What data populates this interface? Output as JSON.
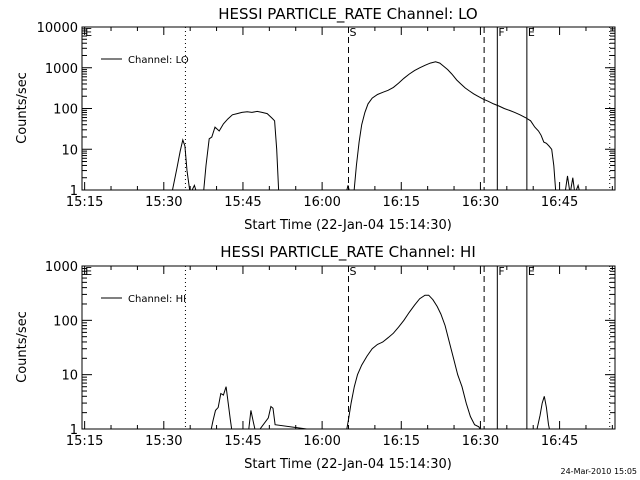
{
  "chart_data": [
    {
      "type": "line",
      "title": "HESSI PARTICLE_RATE Channel: LO",
      "xlabel": "Start Time (22-Jan-04 15:14:30)",
      "ylabel": "Counts/sec",
      "y_scale": "log",
      "ylim": [
        1,
        10000
      ],
      "y_ticks": [
        "1",
        "10",
        "100",
        "1000",
        "10000"
      ],
      "x_ticks": [
        "15:15",
        "15:30",
        "15:45",
        "16:00",
        "16:15",
        "16:30",
        "16:45"
      ],
      "xlim_minutes_from_1514_30": [
        0,
        101
      ],
      "legend": "Channel: LO",
      "legend_placement": "top-left",
      "series": [
        {
          "label": "Channel: LO",
          "points": [
            [
              17.0,
              0.8
            ],
            [
              18.0,
              3.5
            ],
            [
              18.6,
              9
            ],
            [
              19.1,
              17
            ],
            [
              19.5,
              12
            ],
            [
              19.9,
              3
            ],
            [
              20.5,
              0.8
            ],
            [
              21.3,
              1.3
            ],
            [
              21.8,
              0.8
            ],
            [
              23.0,
              0.8
            ],
            [
              23.5,
              4
            ],
            [
              24.1,
              18
            ],
            [
              24.6,
              20
            ],
            [
              25.2,
              35
            ],
            [
              26.0,
              28
            ],
            [
              26.8,
              42
            ],
            [
              27.6,
              55
            ],
            [
              28.5,
              70
            ],
            [
              29.4,
              75
            ],
            [
              30.3,
              80
            ],
            [
              31.3,
              83
            ],
            [
              32.2,
              80
            ],
            [
              33.2,
              85
            ],
            [
              34.1,
              80
            ],
            [
              35.1,
              75
            ],
            [
              36.0,
              58
            ],
            [
              36.5,
              50
            ],
            [
              36.9,
              10
            ],
            [
              37.3,
              0.8
            ],
            [
              50.0,
              0.8
            ],
            [
              50.4,
              1.3
            ],
            [
              50.8,
              0.8
            ],
            [
              51.5,
              0.8
            ],
            [
              52.0,
              4
            ],
            [
              52.5,
              15
            ],
            [
              53.0,
              40
            ],
            [
              53.6,
              80
            ],
            [
              54.2,
              130
            ],
            [
              55.0,
              180
            ],
            [
              56.0,
              220
            ],
            [
              57.0,
              250
            ],
            [
              58.0,
              280
            ],
            [
              59.0,
              330
            ],
            [
              60.0,
              420
            ],
            [
              61.0,
              550
            ],
            [
              62.0,
              700
            ],
            [
              63.0,
              850
            ],
            [
              64.0,
              1000
            ],
            [
              65.0,
              1150
            ],
            [
              66.0,
              1300
            ],
            [
              67.0,
              1400
            ],
            [
              67.8,
              1300
            ],
            [
              68.5,
              1100
            ],
            [
              69.3,
              900
            ],
            [
              70.1,
              700
            ],
            [
              71.0,
              500
            ],
            [
              71.8,
              400
            ],
            [
              72.6,
              320
            ],
            [
              73.4,
              270
            ],
            [
              74.2,
              230
            ],
            [
              75.0,
              200
            ],
            [
              76.0,
              170
            ],
            [
              77.0,
              150
            ],
            [
              78.0,
              130
            ],
            [
              79.0,
              115
            ],
            [
              80.0,
              100
            ],
            [
              81.0,
              90
            ],
            [
              82.0,
              80
            ],
            [
              83.0,
              70
            ],
            [
              84.0,
              60
            ],
            [
              85.0,
              50
            ],
            [
              85.8,
              35
            ],
            [
              86.5,
              28
            ],
            [
              87.0,
              22
            ],
            [
              87.5,
              15
            ],
            [
              88.0,
              14
            ],
            [
              88.5,
              12
            ],
            [
              89.0,
              10
            ],
            [
              89.4,
              4
            ],
            [
              89.8,
              0.8
            ],
            [
              91.5,
              0.8
            ],
            [
              92.0,
              2.2
            ],
            [
              92.5,
              0.8
            ],
            [
              93.0,
              2.0
            ],
            [
              93.4,
              0.8
            ],
            [
              94.0,
              1.3
            ],
            [
              94.4,
              0.8
            ]
          ]
        }
      ],
      "vlines": [
        {
          "x": 19.6,
          "style": "dotted",
          "label": ""
        },
        {
          "x": 50.5,
          "style": "dashed",
          "label": "S"
        },
        {
          "x": 76.2,
          "style": "dashed",
          "label": ""
        },
        {
          "x": 78.7,
          "style": "solid",
          "label": "F"
        },
        {
          "x": 84.3,
          "style": "solid",
          "label": "E"
        },
        {
          "x": 100.0,
          "style": "dotted",
          "label": ""
        },
        {
          "x": 0.4,
          "style": "none",
          "label": "E"
        }
      ]
    },
    {
      "type": "line",
      "title": "HESSI PARTICLE_RATE Channel: HI",
      "xlabel": "Start Time (22-Jan-04 15:14:30)",
      "ylabel": "Counts/sec",
      "y_scale": "log",
      "ylim": [
        1,
        1000
      ],
      "y_ticks": [
        "1",
        "10",
        "100",
        "1000"
      ],
      "x_ticks": [
        "15:15",
        "15:30",
        "15:45",
        "16:00",
        "16:15",
        "16:30",
        "16:45"
      ],
      "xlim_minutes_from_1514_30": [
        0,
        101
      ],
      "legend": "Channel: HI",
      "legend_placement": "top-left",
      "series": [
        {
          "label": "Channel: HI",
          "points": [
            [
              24.3,
              0.8
            ],
            [
              24.8,
              1.4
            ],
            [
              25.3,
              2.2
            ],
            [
              25.8,
              2.5
            ],
            [
              26.3,
              4.5
            ],
            [
              26.8,
              4.2
            ],
            [
              27.3,
              6
            ],
            [
              27.7,
              3
            ],
            [
              28.1,
              1.5
            ],
            [
              28.5,
              0.8
            ],
            [
              31.5,
              0.8
            ],
            [
              32.0,
              2.2
            ],
            [
              32.5,
              1.3
            ],
            [
              33.0,
              0.8
            ],
            [
              35.3,
              1.6
            ],
            [
              35.8,
              2.6
            ],
            [
              36.2,
              2.4
            ],
            [
              36.6,
              1.2
            ],
            [
              50.0,
              0.8
            ],
            [
              50.5,
              1.5
            ],
            [
              51.0,
              3
            ],
            [
              51.6,
              6
            ],
            [
              52.2,
              10
            ],
            [
              53.0,
              15
            ],
            [
              54.0,
              22
            ],
            [
              55.0,
              30
            ],
            [
              56.0,
              36
            ],
            [
              57.0,
              40
            ],
            [
              58.0,
              48
            ],
            [
              59.0,
              58
            ],
            [
              60.0,
              75
            ],
            [
              61.0,
              100
            ],
            [
              62.0,
              140
            ],
            [
              63.0,
              190
            ],
            [
              64.0,
              250
            ],
            [
              65.0,
              290
            ],
            [
              65.7,
              290
            ],
            [
              66.5,
              240
            ],
            [
              67.3,
              180
            ],
            [
              68.0,
              130
            ],
            [
              68.8,
              80
            ],
            [
              69.6,
              40
            ],
            [
              70.4,
              20
            ],
            [
              71.2,
              10
            ],
            [
              72.0,
              6
            ],
            [
              72.8,
              3
            ],
            [
              73.6,
              1.7
            ],
            [
              74.4,
              1.2
            ],
            [
              75.2,
              1.1
            ],
            [
              76.0,
              0.8
            ],
            [
              86.0,
              0.8
            ],
            [
              86.4,
              1.2
            ],
            [
              86.8,
              1.8
            ],
            [
              87.2,
              3
            ],
            [
              87.6,
              4
            ],
            [
              88.0,
              2.5
            ],
            [
              88.4,
              1.2
            ],
            [
              88.8,
              0.8
            ]
          ]
        }
      ],
      "vlines": [
        {
          "x": 19.6,
          "style": "dotted",
          "label": ""
        },
        {
          "x": 50.5,
          "style": "dashed",
          "label": "S"
        },
        {
          "x": 76.2,
          "style": "dashed",
          "label": ""
        },
        {
          "x": 78.7,
          "style": "solid",
          "label": "F"
        },
        {
          "x": 84.3,
          "style": "solid",
          "label": "E"
        },
        {
          "x": 100.0,
          "style": "dotted",
          "label": ""
        },
        {
          "x": 0.4,
          "style": "none",
          "label": "E"
        }
      ]
    }
  ],
  "timestamp": "24-Mar-2010 15:05"
}
